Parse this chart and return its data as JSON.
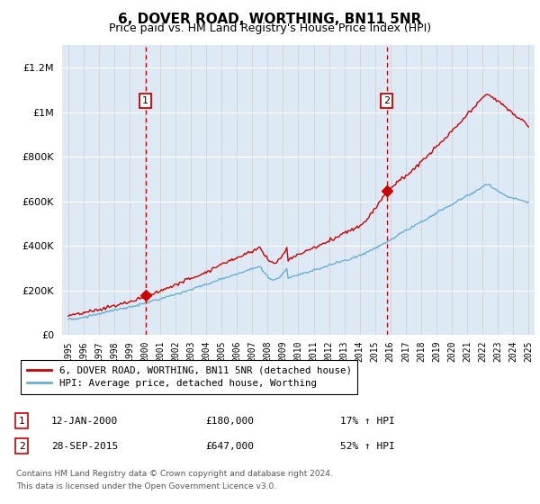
{
  "title": "6, DOVER ROAD, WORTHING, BN11 5NR",
  "subtitle": "Price paid vs. HM Land Registry's House Price Index (HPI)",
  "title_fontsize": 11,
  "subtitle_fontsize": 9,
  "ylim": [
    0,
    1300000
  ],
  "yticks": [
    0,
    200000,
    400000,
    600000,
    800000,
    1000000,
    1200000
  ],
  "bg_color": "#ddeaf6",
  "hpi_color": "#6aaed6",
  "price_color": "#cc0000",
  "marker_color": "#cc0000",
  "sale1_x": 2000.04,
  "sale1_y": 180000,
  "sale1_label": "1",
  "sale1_date": "12-JAN-2000",
  "sale1_price": "£180,000",
  "sale1_hpi": "17% ↑ HPI",
  "sale2_x": 2015.75,
  "sale2_y": 647000,
  "sale2_label": "2",
  "sale2_date": "28-SEP-2015",
  "sale2_price": "£647,000",
  "sale2_hpi": "52% ↑ HPI",
  "legend_line1": "6, DOVER ROAD, WORTHING, BN11 5NR (detached house)",
  "legend_line2": "HPI: Average price, detached house, Worthing",
  "footnote1": "Contains HM Land Registry data © Crown copyright and database right 2024.",
  "footnote2": "This data is licensed under the Open Government Licence v3.0.",
  "xmin": 1994.6,
  "xmax": 2025.4
}
